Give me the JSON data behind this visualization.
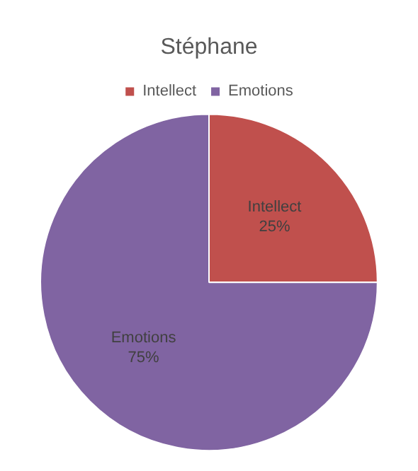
{
  "chart_data": {
    "type": "pie",
    "title": "Stéphane",
    "categories": [
      "Intellect",
      "Emotions"
    ],
    "values": [
      25,
      75
    ],
    "colors": [
      "#c0504d",
      "#8064a2"
    ],
    "value_labels": [
      "25%",
      "75%"
    ],
    "legend": "top"
  }
}
